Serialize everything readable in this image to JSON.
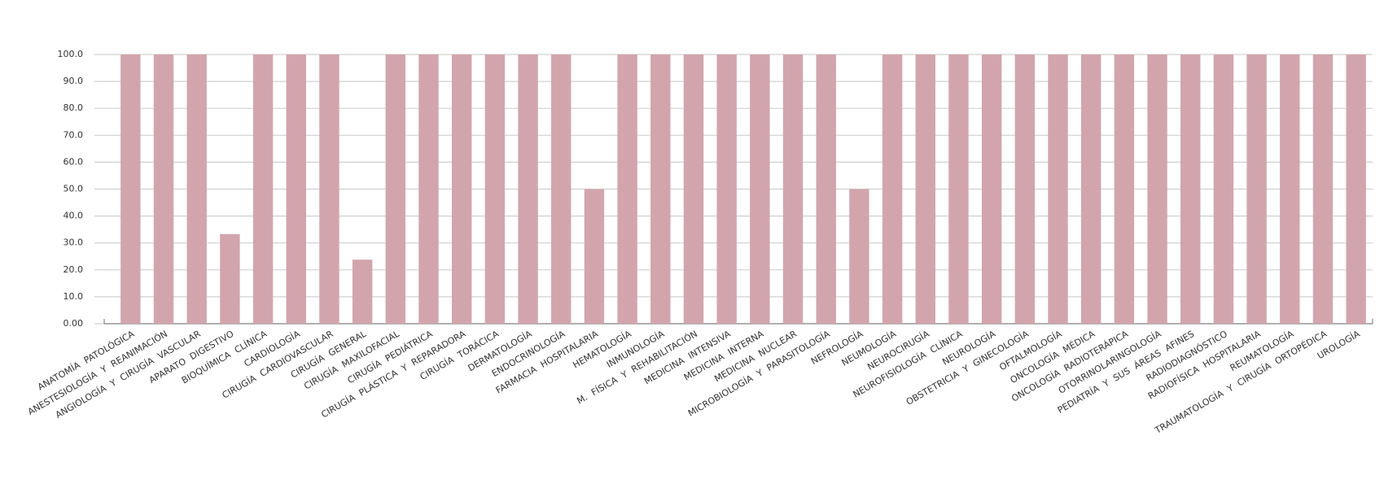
{
  "chart_data": {
    "type": "bar",
    "categories": [
      "ANATOMÍA PATOLÓGICA",
      "ANESTESIOLOGÍA Y REANIMACIÓN",
      "ANGIOLOGÍA Y CIRUGÍA VASCULAR",
      "APARATO DIGESTIVO",
      "BIOQUÍMICA CLÍNICA",
      "CARDIOLOGÍA",
      "CIRUGÍA CARDIOVASCULAR",
      "CIRUGÍA GENERAL",
      "CIRUGÍA MAXILOFACIAL",
      "CIRUGÍA PEDIÁTRICA",
      "CIRUGÍA PLÁSTICA Y REPARADORA",
      "CIRUGÍA TORÁCICA",
      "DERMATOLOGÍA",
      "ENDOCRINOLOGÍA",
      "FARMACIA HOSPITALARIA",
      "HEMATOLOGÍA",
      "INMUNOLOGÍA",
      "M. FÍSICA Y REHABILITACIÓN",
      "MEDICINA INTENSIVA",
      "MEDICINA INTERNA",
      "MEDICINA NUCLEAR",
      "MICROBIOLOGÍA Y PARASITOLOGÍA",
      "NEFROLOGÍA",
      "NEUMOLOGÍA",
      "NEUROCIRUGÍA",
      "NEUROFISIOLOGÍA CLÍNICA",
      "NEUROLOGÍA",
      "OBSTETRICIA Y GINECOLOGÍA",
      "OFTALMOLOGÍA",
      "ONCOLOGÍA MÉDICA",
      "ONCOLOGÍA RADIOTERÁPICA",
      "OTORRINOLARINGOLOGÍA",
      "PEDIATRÍA Y SUS ÁREAS AFINES",
      "RADIODIAGNÓSTICO",
      "RADIOFÍSICA HOSPITALARIA",
      "REUMATOLOGÍA",
      "TRAUMATOLOGÍA Y CIRUGÍA ORTOPÉDICA",
      "UROLOGÍA"
    ],
    "values": [
      100,
      100,
      100,
      33.3,
      100,
      100,
      100,
      23.8,
      100,
      100,
      100,
      100,
      100,
      100,
      50,
      100,
      100,
      100,
      100,
      100,
      100,
      100,
      50,
      100,
      100,
      100,
      100,
      100,
      100,
      100,
      100,
      100,
      100,
      100,
      100,
      100,
      100,
      100
    ],
    "color": "#d2a5ad",
    "ylim": [
      0,
      100
    ],
    "yticks": [
      {
        "value": 0,
        "label": "0.00"
      },
      {
        "value": 10,
        "label": "10.0"
      },
      {
        "value": 20,
        "label": "20.0"
      },
      {
        "value": 30,
        "label": "30.0"
      },
      {
        "value": 40,
        "label": "40.0"
      },
      {
        "value": 50,
        "label": "50.0"
      },
      {
        "value": 60,
        "label": "60.0"
      },
      {
        "value": 70,
        "label": "70.0"
      },
      {
        "value": 80,
        "label": "80.0"
      },
      {
        "value": 90,
        "label": "90.0"
      },
      {
        "value": 100,
        "label": "100.0"
      }
    ],
    "grid": true
  }
}
